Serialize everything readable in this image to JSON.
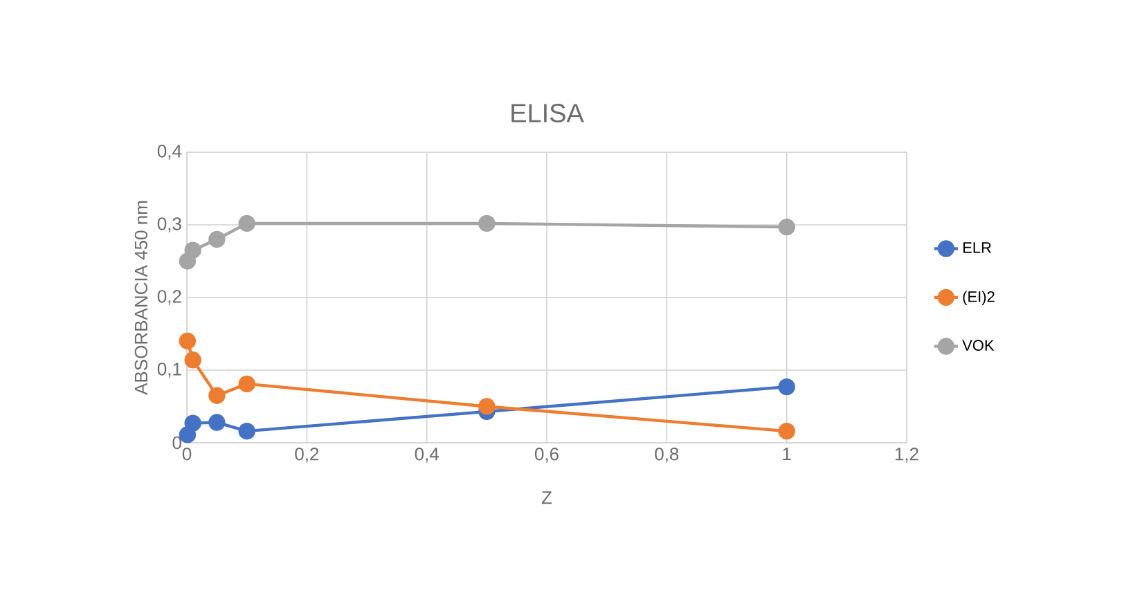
{
  "chart_data": {
    "type": "line",
    "title": "ELISA",
    "xlabel": "Z",
    "ylabel": "ABSORBANCIA 450 nm",
    "x": [
      0.001,
      0.01,
      0.05,
      0.1,
      0.5,
      1
    ],
    "series": [
      {
        "name": "ELR",
        "color": "#4472c4",
        "values": [
          0.011,
          0.027,
          0.028,
          0.016,
          0.043,
          0.077
        ]
      },
      {
        "name": "(EI)2",
        "color": "#ed7d31",
        "values": [
          0.14,
          0.114,
          0.065,
          0.081,
          0.05,
          0.016
        ]
      },
      {
        "name": "VOK",
        "color": "#a5a5a5",
        "values": [
          0.25,
          0.265,
          0.28,
          0.302,
          0.302,
          0.297
        ]
      }
    ],
    "xlim": [
      0,
      1.2
    ],
    "ylim": [
      0,
      0.4
    ],
    "xticks": [
      0,
      {
        "value": 0.2,
        "label": "0,2"
      },
      {
        "value": 0.4,
        "label": "0,4"
      },
      {
        "value": 0.6,
        "label": "0,6"
      },
      {
        "value": 0.8,
        "label": "0,8"
      },
      1,
      {
        "value": 1.2,
        "label": "1,2"
      }
    ],
    "yticks": [
      0,
      {
        "value": 0.1,
        "label": "0,1"
      },
      {
        "value": 0.2,
        "label": "0,2"
      },
      {
        "value": 0.3,
        "label": "0,3"
      },
      {
        "value": 0.4,
        "label": "0,4"
      }
    ],
    "grid": true,
    "legend": "right",
    "marker": "circle",
    "line_style": "solid"
  }
}
